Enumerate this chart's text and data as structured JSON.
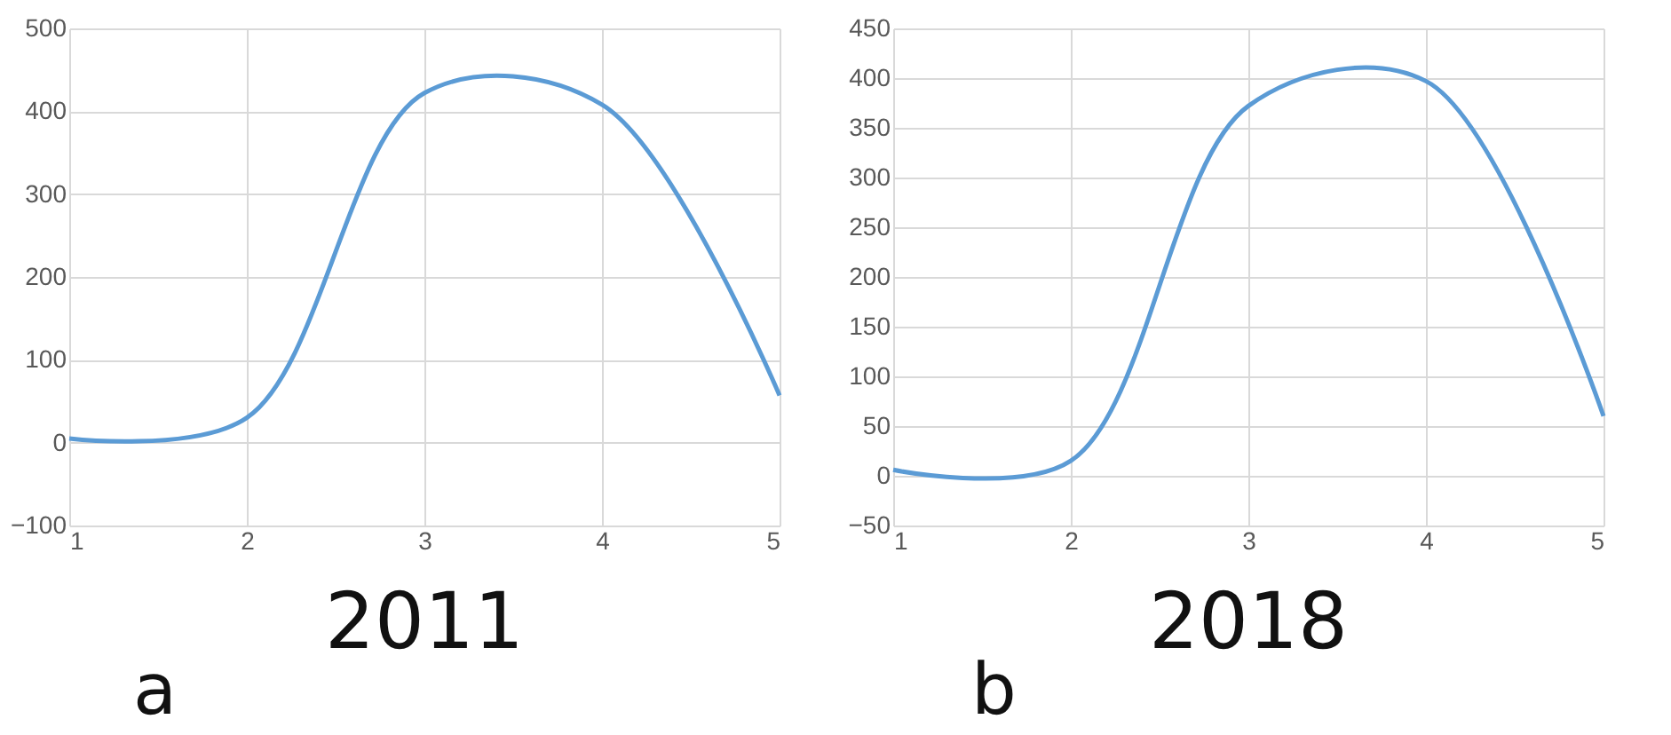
{
  "chart_data": [
    {
      "type": "line",
      "title": "2011",
      "annotations": [
        "a"
      ],
      "x": [
        1,
        2,
        3,
        4,
        5
      ],
      "series": [
        {
          "color": "#5b9bd5",
          "values": [
            5,
            30,
            422,
            408,
            57
          ]
        }
      ],
      "xlim": [
        1,
        5
      ],
      "xticks": [
        1,
        2,
        3,
        4,
        5
      ],
      "ylim": [
        -100,
        500
      ],
      "yticks": [
        -100,
        0,
        100,
        200,
        300,
        400,
        500
      ],
      "grid": true
    },
    {
      "type": "line",
      "title": "2018",
      "annotations": [
        "b"
      ],
      "x": [
        1,
        2,
        3,
        4,
        5
      ],
      "series": [
        {
          "color": "#5b9bd5",
          "values": [
            6,
            15,
            372,
            397,
            60
          ]
        }
      ],
      "xlim": [
        1,
        5
      ],
      "xticks": [
        1,
        2,
        3,
        4,
        5
      ],
      "ylim": [
        -50,
        450
      ],
      "yticks": [
        -50,
        0,
        50,
        100,
        150,
        200,
        250,
        300,
        350,
        400,
        450
      ],
      "grid": true
    }
  ]
}
